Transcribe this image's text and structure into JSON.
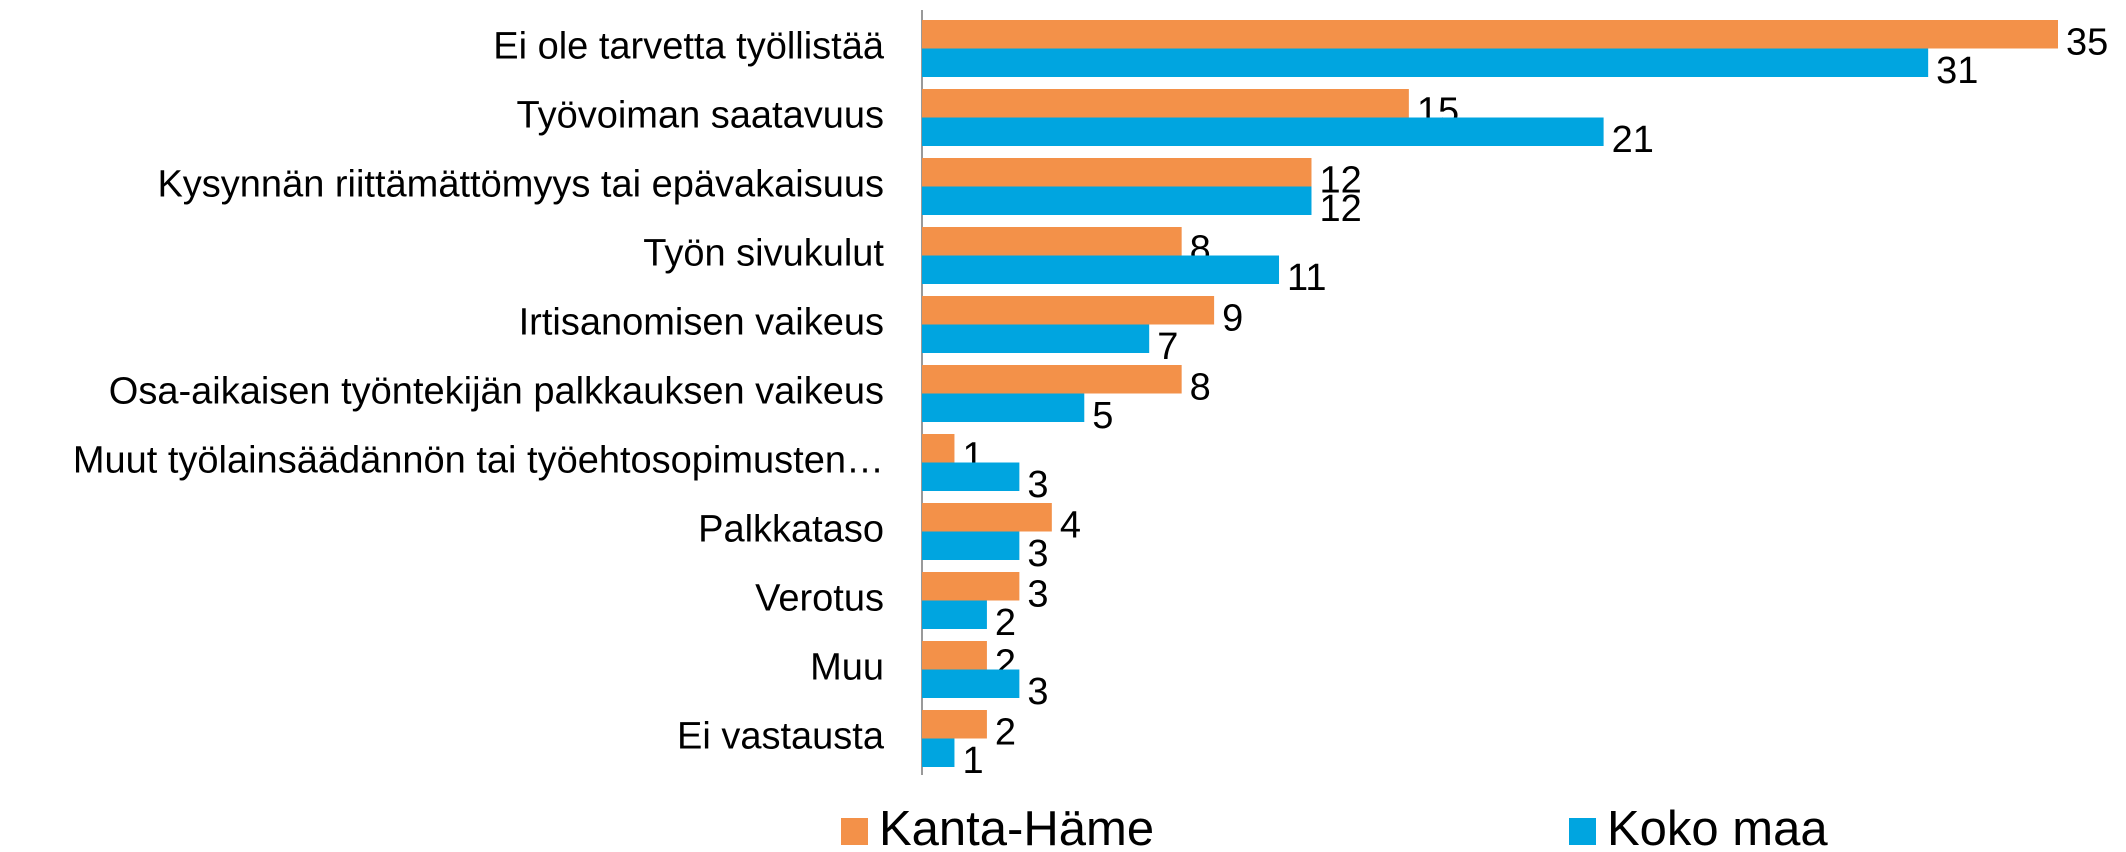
{
  "chart_data": {
    "type": "hbar",
    "categories": [
      "Ei ole tarvetta työllistää",
      "Työvoiman saatavuus",
      "Kysynnän riittämättömyys tai epävakaisuus",
      "Työn sivukulut",
      "Irtisanomisen vaikeus",
      "Osa-aikaisen työntekijän palkkauksen vaikeus",
      "Muut työlainsäädännön tai työehtosopimusten…",
      "Palkkataso",
      "Verotus",
      "Muu",
      "Ei vastausta"
    ],
    "series": [
      {
        "name": "Kanta-Häme",
        "color": "#f39149",
        "values": [
          35,
          15,
          12,
          8,
          9,
          8,
          1,
          4,
          3,
          2,
          2
        ]
      },
      {
        "name": "Koko maa",
        "color": "#00a5e0",
        "values": [
          31,
          21,
          12,
          11,
          7,
          5,
          3,
          3,
          2,
          3,
          1
        ]
      }
    ],
    "legend": "bottom"
  }
}
